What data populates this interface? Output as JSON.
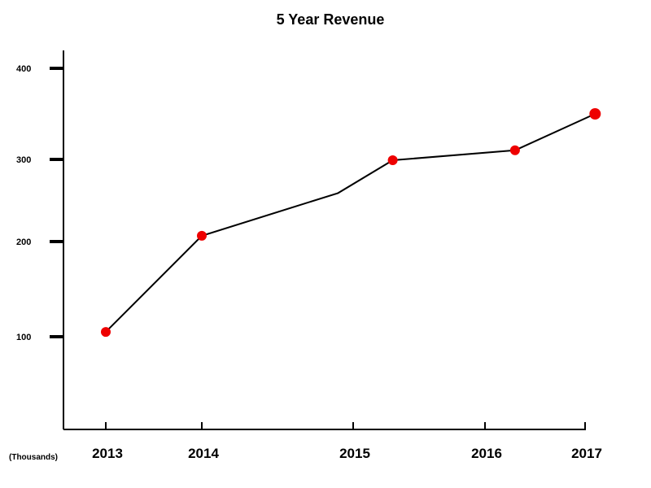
{
  "chart_data": {
    "type": "line",
    "title": "5 Year Revenue",
    "xlabel": "",
    "ylabel": "",
    "units_label": "(Thousands)",
    "categories": [
      "2013",
      "2014",
      "2015",
      "2016",
      "2017"
    ],
    "series": [
      {
        "x": [
          2013,
          2014,
          2014.9,
          2015.3,
          2016.3,
          2017.1
        ],
        "values": [
          105,
          207,
          259,
          299,
          310,
          350
        ],
        "markers": [
          true,
          true,
          false,
          true,
          true,
          true
        ]
      }
    ],
    "yticks": [
      100,
      200,
      300,
      400
    ],
    "ylim": [
      0,
      400
    ],
    "grid": false,
    "legend": "none",
    "colors": {
      "line": "#000000",
      "marker": "#ee0000",
      "axis": "#000000"
    }
  }
}
